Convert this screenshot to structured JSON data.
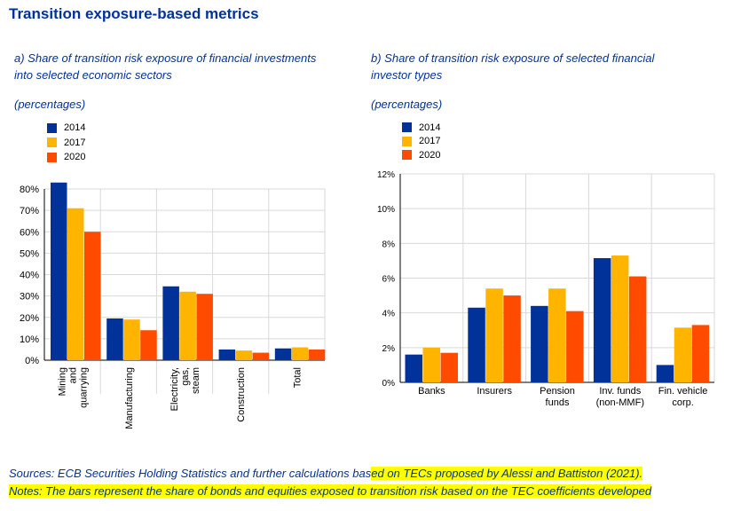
{
  "title": "Transition exposure-based metrics",
  "colors": {
    "2014": "#003299",
    "2017": "#ffb400",
    "2020": "#ff4b00",
    "accent": "#003299",
    "highlight": "#ffff00"
  },
  "chart_a": {
    "subtitle_line1": "a) Share of transition risk exposure of financial investments",
    "subtitle_line2": "into selected economic sectors",
    "unit": "(percentages)",
    "legend": [
      "2014",
      "2017",
      "2020"
    ]
  },
  "chart_b": {
    "subtitle_line1": "b) Share of transition risk exposure of selected financial",
    "subtitle_line2": "investor types",
    "unit": "(percentages)",
    "legend": [
      "2014",
      "2017",
      "2020"
    ]
  },
  "chart_data": [
    {
      "type": "bar",
      "categories": [
        [
          "Mining",
          "and",
          "quarrying"
        ],
        [
          "Manufacturing"
        ],
        [
          "Electricity,",
          "gas,",
          "steam"
        ],
        [
          "Construction"
        ],
        [
          "Total"
        ]
      ],
      "series": [
        {
          "name": "2014",
          "values": [
            83,
            19.5,
            34.5,
            5,
            5.5
          ]
        },
        {
          "name": "2017",
          "values": [
            71,
            19,
            32,
            4.5,
            6
          ]
        },
        {
          "name": "2020",
          "values": [
            60,
            14,
            31,
            3.5,
            5
          ]
        }
      ],
      "ylim": [
        0,
        80
      ],
      "yticks": [
        "0%",
        "10%",
        "20%",
        "30%",
        "40%",
        "50%",
        "60%",
        "70%",
        "80%"
      ],
      "grid": true,
      "rotated_labels": true
    },
    {
      "type": "bar",
      "categories": [
        [
          "Banks"
        ],
        [
          "Insurers"
        ],
        [
          "Pension",
          "funds"
        ],
        [
          "Inv. funds",
          "(non-MMF)"
        ],
        [
          "Fin. vehicle",
          "corp."
        ]
      ],
      "series": [
        {
          "name": "2014",
          "values": [
            1.6,
            4.3,
            4.4,
            7.15,
            1.0
          ]
        },
        {
          "name": "2017",
          "values": [
            2.0,
            5.4,
            5.4,
            7.3,
            3.15
          ]
        },
        {
          "name": "2020",
          "values": [
            1.7,
            5.0,
            4.1,
            6.1,
            3.3
          ]
        }
      ],
      "ylim": [
        0,
        12
      ],
      "yticks": [
        "0%",
        "2%",
        "4%",
        "6%",
        "8%",
        "10%",
        "12%"
      ],
      "grid": true,
      "rotated_labels": false
    }
  ],
  "footer": {
    "sources_a": "Sources: ECB Securities Holding Statistics and further calculations bas",
    "sources_b": "ed on TECs proposed by Alessi and Battiston (2021).",
    "notes": "Notes: The bars represent the share of bonds and equities exposed to transition risk based on the TEC coefficients developed"
  }
}
